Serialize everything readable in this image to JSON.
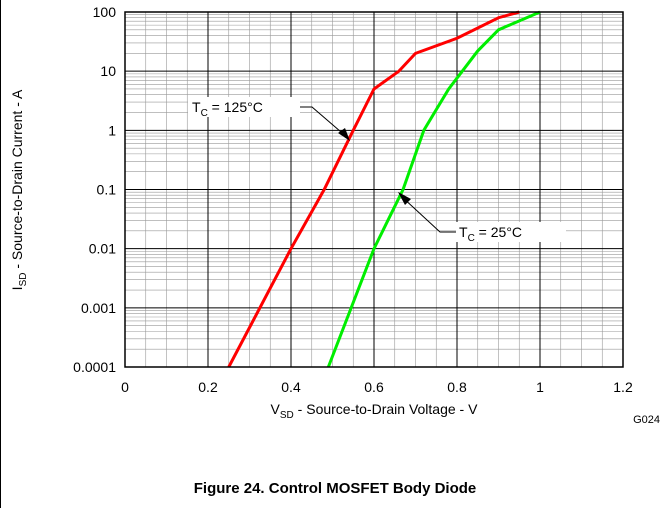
{
  "chart_data": {
    "type": "line",
    "xlabel": {
      "main": "V",
      "sub": "SD",
      "rest": " - Source-to-Drain Voltage - V"
    },
    "ylabel": {
      "main": "I",
      "sub": "SD",
      "rest": " - Source-to-Drain Current - A"
    },
    "code": "G024",
    "caption": "Figure 24. Control MOSFET Body Diode",
    "xlim": [
      0,
      1.2
    ],
    "xticks": [
      0,
      0.2,
      0.4,
      0.6,
      0.8,
      1,
      1.2
    ],
    "ylim": [
      0.0001,
      100
    ],
    "yticks": [
      100,
      10,
      1,
      0.1,
      0.01,
      0.001,
      0.0001
    ],
    "log_y": true,
    "grid": true,
    "minor_grid": true,
    "series": [
      {
        "name": {
          "main": "T",
          "sub": "C",
          "rest": " = 125°C"
        },
        "color": "#ff0000",
        "x": [
          0.25,
          0.4,
          0.48,
          0.55,
          0.6,
          0.66,
          0.7,
          0.8,
          0.9,
          0.95
        ],
        "values": [
          0.0001,
          0.01,
          0.1,
          1,
          5,
          10,
          20,
          36,
          80,
          100
        ]
      },
      {
        "name": {
          "main": "T",
          "sub": "C",
          "rest": " = 25°C"
        },
        "color": "#00ee00",
        "x": [
          0.49,
          0.6,
          0.67,
          0.72,
          0.78,
          0.85,
          0.9,
          1.0
        ],
        "values": [
          0.0001,
          0.01,
          0.1,
          1,
          5,
          22,
          50,
          100
        ]
      }
    ]
  }
}
